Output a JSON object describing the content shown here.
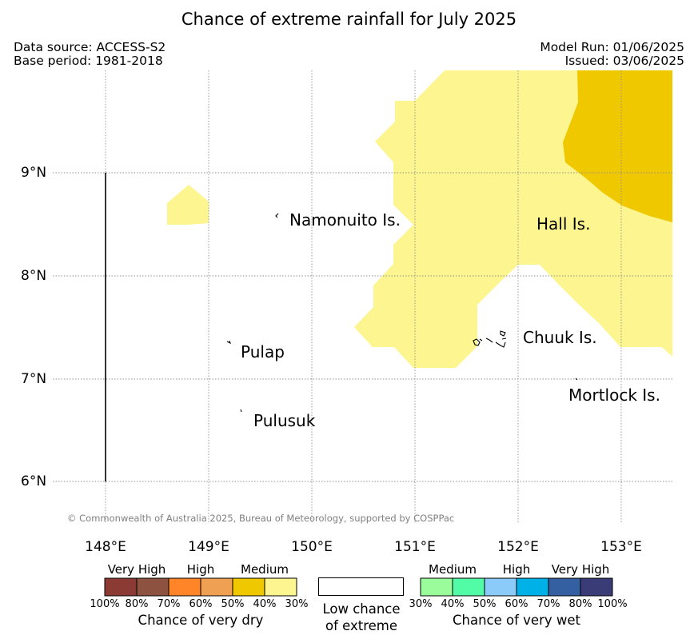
{
  "title": "Chance of extreme rainfall for July 2025",
  "meta": {
    "data_source": "Data source: ACCESS-S2",
    "base_period": "Base period: 1981-2018",
    "model_run": "Model Run: 01/06/2025",
    "issued": "Issued: 03/06/2025"
  },
  "map": {
    "lat_labels": [
      "9°N",
      "8°N",
      "7°N",
      "6°N"
    ],
    "lon_labels": [
      "148°E",
      "149°E",
      "150°E",
      "151°E",
      "152°E",
      "153°E"
    ],
    "places": {
      "namonuito": "Namonuito Is.",
      "hall": "Hall Is.",
      "pulap": "Pulap",
      "chuuk": "Chuuk Is.",
      "mortlock": "Mortlock Is.",
      "pulusuk": "Pulusuk"
    },
    "copyright": "© Commonwealth of Australia 2025, Bureau of Meteorology, supported by COSPPac",
    "colors": {
      "dry_medium_30_40": "#fdf58f",
      "dry_medium_40_50": "#efc800"
    }
  },
  "legend": {
    "dry": {
      "categories": [
        "Very High",
        "High",
        "Medium"
      ],
      "colors": [
        "#8b3a34",
        "#8d5240",
        "#ff8528",
        "#efa052",
        "#efc800",
        "#fdf58f"
      ],
      "ticks": [
        "100%",
        "80%",
        "70%",
        "60%",
        "50%",
        "40%",
        "30%"
      ],
      "label": "Chance of very dry"
    },
    "low": {
      "line1": "Low chance",
      "line2": "of extreme"
    },
    "wet": {
      "categories": [
        "Medium",
        "High",
        "Very High"
      ],
      "colors": [
        "#9afc9a",
        "#52fca6",
        "#8acbfa",
        "#00b1e8",
        "#345fa0",
        "#3a3c77"
      ],
      "ticks": [
        "30%",
        "40%",
        "50%",
        "60%",
        "70%",
        "80%",
        "100%"
      ],
      "label": "Chance of very wet"
    }
  }
}
